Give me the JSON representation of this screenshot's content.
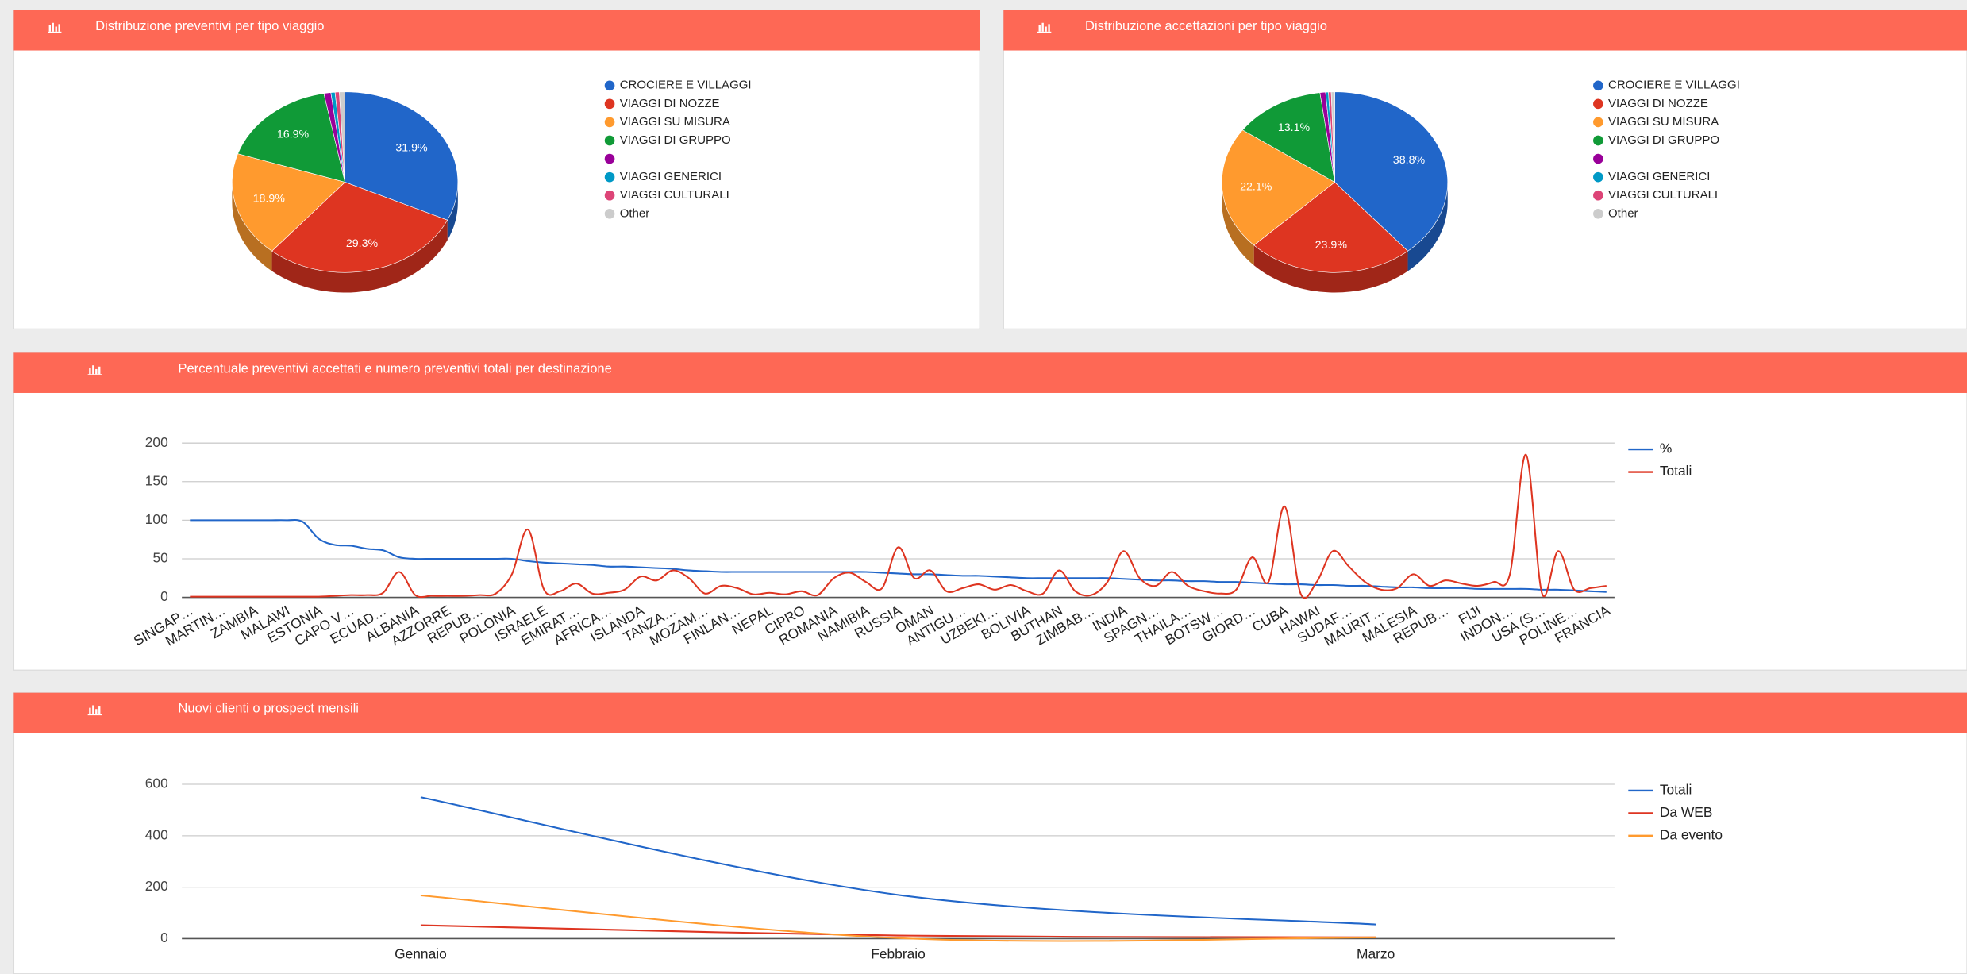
{
  "chart_data": [
    {
      "type": "pie",
      "title": "Distribuzione preventivi per tipo viaggio",
      "legend": "right",
      "categories": [
        "CROCIERE E VILLAGGI",
        "VIAGGI DI NOZZE",
        "VIAGGI SU MISURA",
        "VIAGGI DI GRUPPO",
        null,
        "VIAGGI GENERICI",
        "VIAGGI CULTURALI",
        "Other"
      ],
      "values": [
        31.9,
        29.3,
        18.9,
        16.9,
        1.0,
        0.6,
        0.6,
        0.8
      ],
      "value_labels": [
        "31.9%",
        "29.3%",
        "18.9%",
        "16.9%",
        null,
        null,
        null,
        null
      ],
      "colors": [
        "#2166c9",
        "#de3521",
        "#ff9a2e",
        "#109a37",
        "#990099",
        "#0099c6",
        "#dd4477",
        "#cccccc"
      ]
    },
    {
      "type": "pie",
      "title": "Distribuzione accettazioni per tipo viaggio",
      "legend": "right",
      "categories": [
        "CROCIERE E VILLAGGI",
        "VIAGGI DI NOZZE",
        "VIAGGI SU MISURA",
        "VIAGGI DI GRUPPO",
        null,
        "VIAGGI GENERICI",
        "VIAGGI CULTURALI",
        "Other"
      ],
      "values": [
        38.8,
        23.9,
        22.1,
        13.1,
        0.8,
        0.4,
        0.4,
        0.5
      ],
      "value_labels": [
        "38.8%",
        "23.9%",
        "22.1%",
        "13.1%",
        null,
        null,
        null,
        null
      ],
      "colors": [
        "#2166c9",
        "#de3521",
        "#ff9a2e",
        "#109a37",
        "#990099",
        "#0099c6",
        "#dd4477",
        "#cccccc"
      ]
    },
    {
      "type": "line",
      "title": "Percentuale preventivi accettati e numero preventivi totali per destinazione",
      "legend": "right",
      "grid": true,
      "categories": [
        "SINGAP…",
        null,
        "MARTIN…",
        null,
        "ZAMBIA",
        null,
        "MALAWI",
        null,
        "ESTONIA",
        null,
        "CAPO V…",
        null,
        "ECUAD…",
        null,
        "ALBANIA",
        null,
        "AZZORRE",
        null,
        "REPUB…",
        null,
        "POLONIA",
        null,
        "ISRAELE",
        null,
        "EMIRAT…",
        null,
        "AFRICA…",
        null,
        "ISLANDA",
        null,
        "TANZA…",
        null,
        "MOZAM…",
        null,
        "FINLAN…",
        null,
        "NEPAL",
        null,
        "CIPRO",
        null,
        "ROMANIA",
        null,
        "NAMIBIA",
        null,
        "RUSSIA",
        null,
        "OMAN",
        null,
        "ANTIGU…",
        null,
        "UZBEKI…",
        null,
        "BOLIVIA",
        null,
        "BUTHAN",
        null,
        "ZIMBAB…",
        null,
        "INDIA",
        null,
        "SPAGN…",
        null,
        "THAILA…",
        null,
        "BOTSW…",
        null,
        "GIORD…",
        null,
        "CUBA",
        null,
        "HAWAI",
        null,
        "SUDAF…",
        null,
        "MAURIT…",
        null,
        "MALESIA",
        null,
        "REPUB…",
        null,
        "FIJI",
        null,
        "INDON…",
        null,
        "USA (S…",
        null,
        "POLINE…",
        null,
        "FRANCIA"
      ],
      "series": [
        {
          "name": "%",
          "color": "#2166c9",
          "values": [
            100,
            100,
            100,
            100,
            100,
            100,
            100,
            98,
            76,
            68,
            67,
            63,
            61,
            52,
            50,
            50,
            50,
            50,
            50,
            50,
            50,
            47,
            45,
            44,
            43,
            42,
            40,
            40,
            39,
            38,
            37,
            35,
            34,
            33,
            33,
            33,
            33,
            33,
            33,
            33,
            33,
            33,
            33,
            32,
            31,
            30,
            30,
            29,
            28,
            28,
            27,
            26,
            25,
            25,
            25,
            25,
            25,
            25,
            24,
            23,
            22,
            22,
            21,
            21,
            20,
            20,
            19,
            18,
            17,
            17,
            16,
            16,
            15,
            15,
            14,
            13,
            13,
            12,
            12,
            12,
            11,
            11,
            11,
            11,
            10,
            10,
            9,
            8,
            7
          ]
        },
        {
          "name": "Totali",
          "color": "#de3521",
          "values": [
            1,
            1,
            1,
            1,
            1,
            1,
            1,
            1,
            1,
            2,
            3,
            3,
            6,
            33,
            3,
            2,
            2,
            2,
            3,
            5,
            30,
            88,
            10,
            8,
            18,
            5,
            6,
            10,
            27,
            22,
            35,
            25,
            5,
            15,
            12,
            4,
            6,
            4,
            8,
            3,
            25,
            32,
            20,
            12,
            65,
            25,
            35,
            8,
            12,
            17,
            10,
            16,
            8,
            5,
            35,
            8,
            3,
            20,
            60,
            25,
            15,
            33,
            15,
            8,
            5,
            10,
            52,
            20,
            118,
            5,
            20,
            60,
            40,
            20,
            10,
            12,
            30,
            15,
            22,
            18,
            15,
            20,
            30,
            185,
            5,
            60,
            10,
            12,
            15
          ]
        }
      ],
      "ylim": [
        0,
        200
      ],
      "yticks": [
        0,
        50,
        100,
        150,
        200
      ]
    },
    {
      "type": "line",
      "title": "Nuovi clienti o prospect mensili",
      "legend": "right",
      "grid": true,
      "categories": [
        "Gennaio",
        "Febbraio",
        "Marzo"
      ],
      "series": [
        {
          "name": "Totali",
          "color": "#2166c9",
          "values": [
            550,
            170,
            55
          ]
        },
        {
          "name": "Da WEB",
          "color": "#de3521",
          "values": [
            52,
            12,
            5
          ]
        },
        {
          "name": "Da evento",
          "color": "#ff9a2e",
          "values": [
            168,
            2,
            5
          ]
        }
      ],
      "ylim": [
        0,
        600
      ],
      "yticks": [
        0,
        200,
        400,
        600
      ]
    }
  ]
}
